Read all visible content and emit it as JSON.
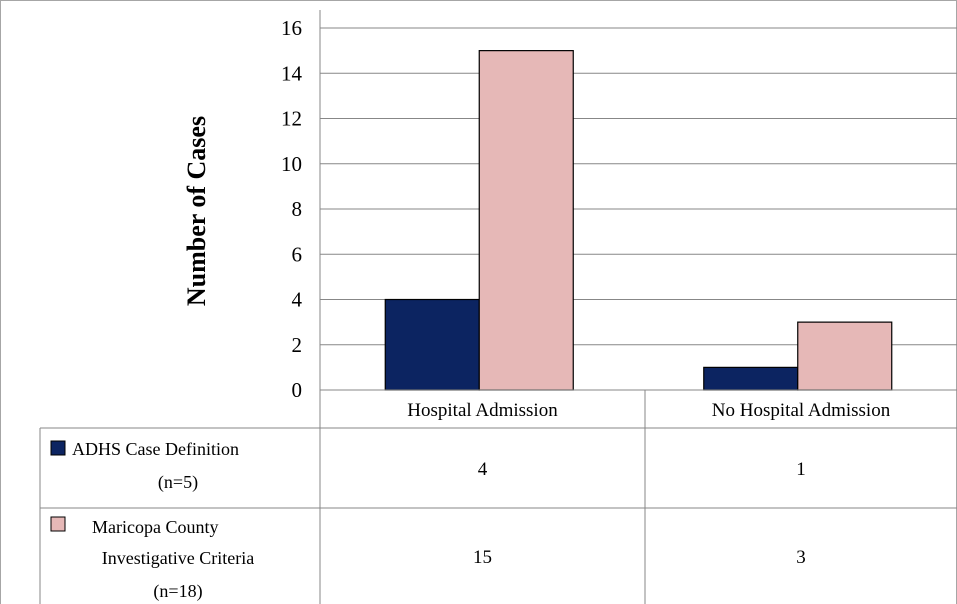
{
  "chart_data": {
    "type": "bar",
    "title": "",
    "xlabel": "",
    "ylabel": "Number of Cases",
    "ylim": [
      0,
      16
    ],
    "yticks": [
      0,
      2,
      4,
      6,
      8,
      10,
      12,
      14,
      16
    ],
    "grid": true,
    "categories": [
      "Hospital Admission",
      "No Hospital Admission"
    ],
    "series": [
      {
        "name": "ADHS Case Definition (n=5)",
        "name_lines": [
          "ADHS Case Definition",
          "(n=5)"
        ],
        "color": "#0c2461",
        "values": [
          4,
          1
        ]
      },
      {
        "name": "Maricopa County Investigative Criteria (n=18)",
        "name_lines": [
          "Maricopa County",
          "Investigative Criteria",
          "(n=18)"
        ],
        "color": "#e6b8b7",
        "values": [
          15,
          3
        ]
      }
    ],
    "data_table": true
  }
}
